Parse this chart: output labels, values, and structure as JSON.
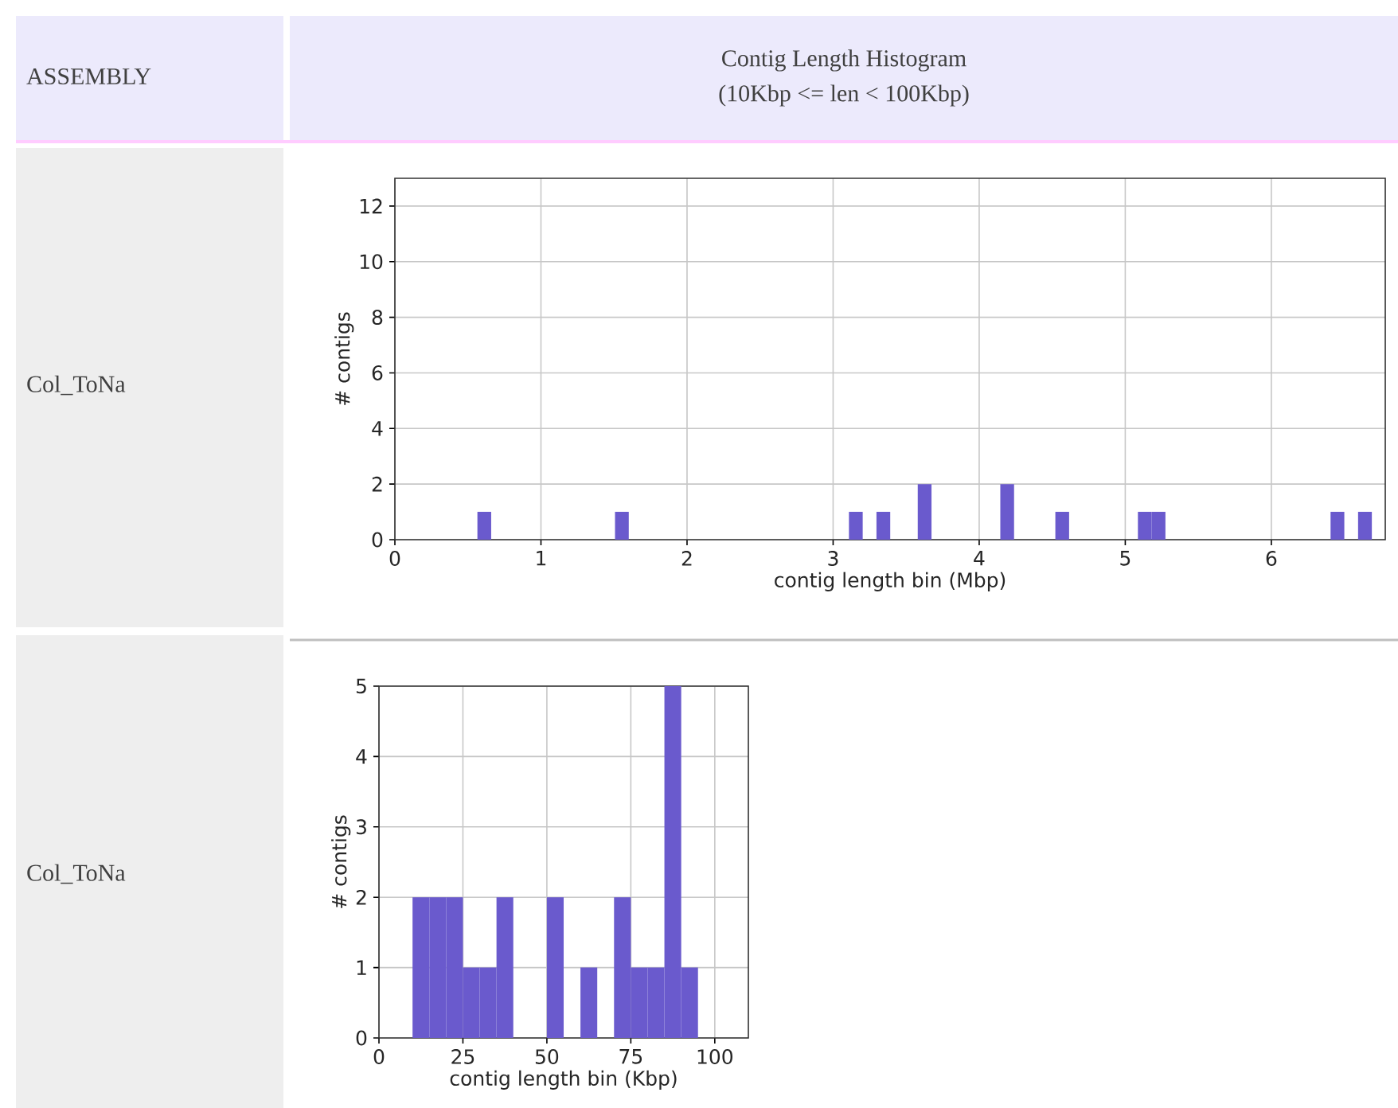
{
  "chart_data": [
    {
      "type": "histogram",
      "title": "Contig Length Histogram",
      "subtitle": "(10Kbp <= len < 100Kbp)",
      "annotations": [
        "ASSEMBLY",
        "Col_ToNa"
      ],
      "xlabel": "contig length bin (Mbp)",
      "ylabel": "# contigs",
      "color": "#6a5acd",
      "grid": true,
      "bins": [
        0.565,
        0.6592,
        0.7534,
        0.8476,
        0.9418,
        1.036,
        1.1302,
        1.2244,
        1.3186,
        1.4128,
        1.507,
        1.6012,
        1.6954,
        1.7896,
        1.8838,
        1.978,
        2.0722,
        2.1664,
        2.2606,
        2.3548,
        2.449,
        2.5432,
        2.6374,
        2.7316,
        2.8258,
        2.92,
        3.0142,
        3.1084,
        3.2026,
        3.2968,
        3.391,
        3.4852,
        3.5794,
        3.6736,
        3.7678,
        3.862,
        3.9562,
        4.0504,
        4.1446,
        4.2388,
        4.333,
        4.4272,
        4.5214,
        4.6156,
        4.7098,
        4.804,
        4.8982,
        4.9924,
        5.0866,
        5.1808,
        5.275,
        5.3692,
        5.4634,
        5.5576,
        5.6518,
        5.746,
        5.8402,
        5.9344,
        6.0286,
        6.1228,
        6.217,
        6.3112,
        6.4054,
        6.4996,
        6.5938,
        6.688
      ],
      "values": [
        1,
        0,
        0,
        0,
        0,
        0,
        0,
        0,
        0,
        0,
        1,
        0,
        0,
        0,
        0,
        0,
        0,
        0,
        0,
        0,
        0,
        0,
        0,
        0,
        0,
        0,
        0,
        1,
        0,
        1,
        0,
        0,
        2,
        0,
        0,
        0,
        0,
        0,
        2,
        0,
        0,
        0,
        1,
        0,
        0,
        0,
        0,
        0,
        1,
        1,
        0,
        0,
        0,
        0,
        0,
        0,
        0,
        0,
        0,
        0,
        0,
        0,
        1,
        0,
        1
      ],
      "xlim": [
        0,
        6.78
      ],
      "ylim": [
        0,
        13
      ],
      "xticks": [
        0,
        1,
        2,
        3,
        4,
        5,
        6
      ],
      "yticks": [
        0,
        2,
        4,
        6,
        8,
        10,
        12
      ]
    },
    {
      "type": "histogram",
      "annotations": [
        "Col_ToNa"
      ],
      "xlabel": "contig length bin (Kbp)",
      "ylabel": "# contigs",
      "color": "#6a5acd",
      "grid": true,
      "bins": [
        10,
        15,
        20,
        25,
        30,
        35,
        40,
        45,
        50,
        55,
        60,
        65,
        70,
        75,
        80,
        85,
        90,
        95
      ],
      "values": [
        2,
        2,
        2,
        1,
        1,
        2,
        0,
        0,
        2,
        0,
        1,
        0,
        2,
        1,
        1,
        5,
        1
      ],
      "xlim": [
        0,
        110
      ],
      "ylim": [
        0,
        5
      ],
      "xticks": [
        0,
        25,
        50,
        75,
        100
      ],
      "yticks": [
        0,
        1,
        2,
        3,
        4,
        5
      ]
    }
  ]
}
